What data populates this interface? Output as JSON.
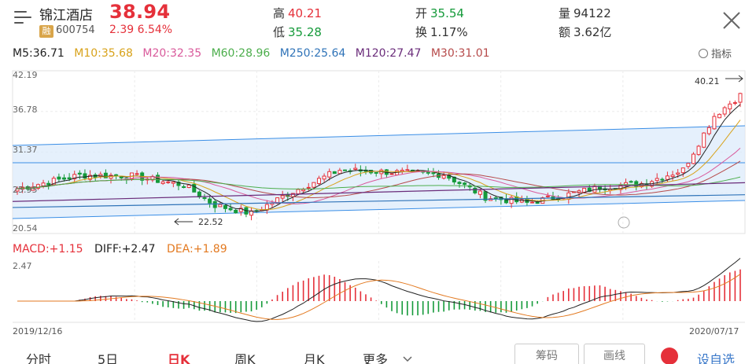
{
  "header": {
    "name": "锦江酒店",
    "price": "38.94",
    "badge": "融",
    "code": "600754",
    "change": "2.39  6.54%",
    "high_label": "高",
    "high": "40.21",
    "low_label": "低",
    "low": "35.28",
    "open_label": "开",
    "open": "35.54",
    "turnover_label": "换",
    "turnover": "1.17%",
    "volume_label": "量",
    "volume": "94122",
    "amount_label": "额",
    "amount": "3.62亿"
  },
  "ma_legend": {
    "m5": "M5:36.71",
    "m10": "M10:35.68",
    "m20": "M20:32.35",
    "m60": "M60:28.96",
    "m250": "M250:25.64",
    "m120": "M120:27.47",
    "m30": "M30:31.01",
    "indicator": "指标"
  },
  "colors": {
    "up": "#e5303a",
    "down": "#159a3a",
    "m5": "#222222",
    "m10": "#d8a21a",
    "m20": "#d95a9b",
    "m60": "#4cae4c",
    "m250": "#2f73b8",
    "m120": "#6a2c7a",
    "m30": "#b64a4a",
    "channel": "#3a8ee6"
  },
  "chart_data": [
    {
      "type": "candlestick",
      "y_ticks": [
        "42.19",
        "36.78",
        "31.37",
        "25.95",
        "20.54"
      ],
      "ylim": [
        20.54,
        42.19
      ],
      "annotations": [
        {
          "text": "40.21",
          "label": "period high"
        },
        {
          "text": "22.52",
          "label": "period low"
        }
      ],
      "x_start": "2019/12/16",
      "x_end": "2020/07/17",
      "series": [
        {
          "name": "M5",
          "last": 36.71
        },
        {
          "name": "M10",
          "last": 35.68
        },
        {
          "name": "M20",
          "last": 32.35
        },
        {
          "name": "M30",
          "last": 31.01
        },
        {
          "name": "M60",
          "last": 28.96
        },
        {
          "name": "M120",
          "last": 27.47
        },
        {
          "name": "M250",
          "last": 25.64
        }
      ]
    },
    {
      "type": "bar",
      "indicator": "MACD",
      "y_tick": "2.47",
      "series": [
        {
          "name": "MACD",
          "last": 1.15
        },
        {
          "name": "DIFF",
          "last": 2.47
        },
        {
          "name": "DEA",
          "last": 1.89
        }
      ]
    }
  ],
  "macd_legend": {
    "macd": "MACD:+1.15",
    "diff": "DIFF:+2.47",
    "dea": "DEA:+1.89"
  },
  "tabs": [
    "分时",
    "5日",
    "日K",
    "周K",
    "月K",
    "更多"
  ],
  "buttons": {
    "chips": "筹码",
    "draw": "画线",
    "favorite": "设自选"
  }
}
